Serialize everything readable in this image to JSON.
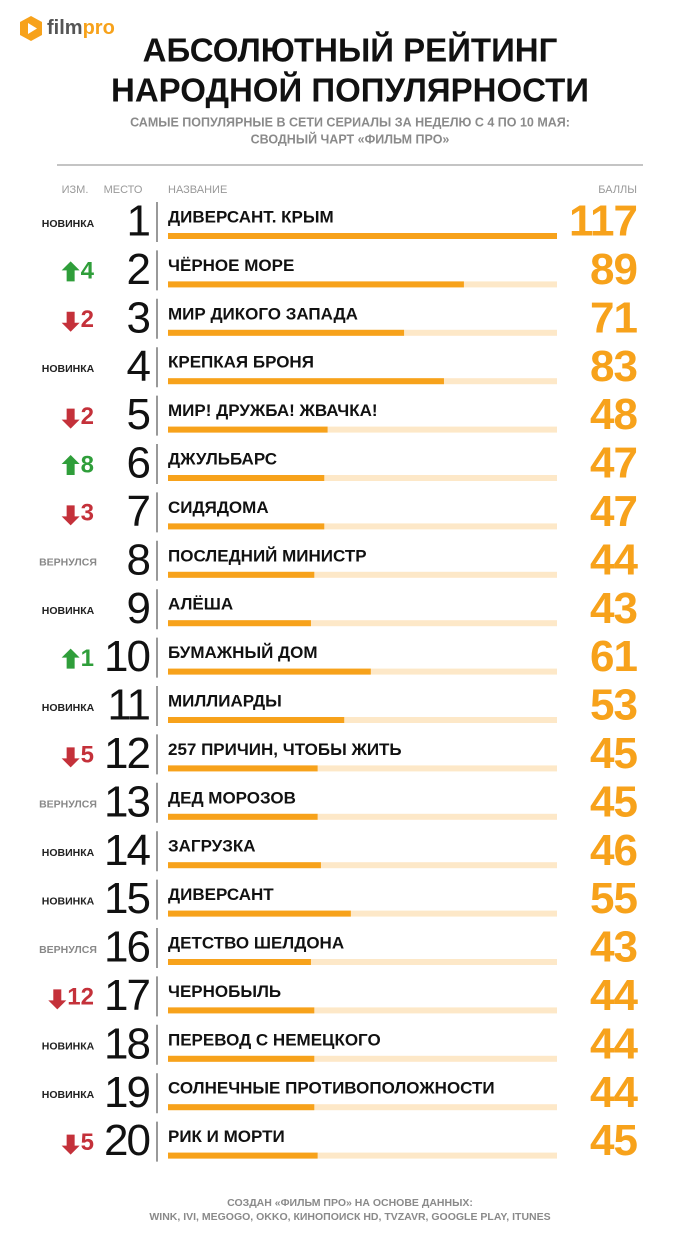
{
  "logo": {
    "film": "film",
    "pro": "pro"
  },
  "title": [
    "АБСОЛЮТНЫЙ РЕЙТИНГ",
    "НАРОДНОЙ ПОПУЛЯРНОСТИ"
  ],
  "subtitle": [
    "САМЫЕ ПОПУЛЯРНЫЕ В СЕТИ СЕРИАЛЫ ЗА НЕДЕЛЮ С 4 ПО 10 МАЯ:",
    "СВОДНЫЙ ЧАРТ «ФИЛЬМ ПРО»"
  ],
  "columns": {
    "change": "ИЗМ.",
    "place": "МЕСТО",
    "name": "НАЗВАНИЕ",
    "score": "БАЛЛЫ"
  },
  "rows": [
    {
      "change": "НОВИНКА",
      "place": 1,
      "name": "ДИВЕРСАНТ. КРЫМ",
      "score": 117
    },
    {
      "change": {
        "direction": "up",
        "value": 4
      },
      "place": 2,
      "name": "ЧЁРНОЕ МОРЕ",
      "score": 89
    },
    {
      "change": {
        "direction": "down",
        "value": 2
      },
      "place": 3,
      "name": "МИР ДИКОГО ЗАПАДА",
      "score": 71
    },
    {
      "change": "НОВИНКА",
      "place": 4,
      "name": "КРЕПКАЯ БРОНЯ",
      "score": 83
    },
    {
      "change": {
        "direction": "down",
        "value": 2
      },
      "place": 5,
      "name": "МИР! ДРУЖБА! ЖВАЧКА!",
      "score": 48
    },
    {
      "change": {
        "direction": "up",
        "value": 8
      },
      "place": 6,
      "name": "ДЖУЛЬБАРС",
      "score": 47
    },
    {
      "change": {
        "direction": "down",
        "value": 3
      },
      "place": 7,
      "name": "СИДЯДОМА",
      "score": 47
    },
    {
      "change": "ВЕРНУЛСЯ",
      "place": 8,
      "name": "ПОСЛЕДНИЙ МИНИСТР",
      "score": 44
    },
    {
      "change": "НОВИНКА",
      "place": 9,
      "name": "АЛЁША",
      "score": 43
    },
    {
      "change": {
        "direction": "up",
        "value": 1
      },
      "place": 10,
      "name": "БУМАЖНЫЙ ДОМ",
      "score": 61
    },
    {
      "change": "НОВИНКА",
      "place": 11,
      "name": "МИЛЛИАРДЫ",
      "score": 53
    },
    {
      "change": {
        "direction": "down",
        "value": 5
      },
      "place": 12,
      "name": "257 ПРИЧИН, ЧТОБЫ ЖИТЬ",
      "score": 45
    },
    {
      "change": "ВЕРНУЛСЯ",
      "place": 13,
      "name": "ДЕД МОРОЗОВ",
      "score": 45
    },
    {
      "change": "НОВИНКА",
      "place": 14,
      "name": "ЗАГРУЗКА",
      "score": 46
    },
    {
      "change": "НОВИНКА",
      "place": 15,
      "name": "ДИВЕРСАНТ",
      "score": 55
    },
    {
      "change": "ВЕРНУЛСЯ",
      "place": 16,
      "name": "ДЕТСТВО ШЕЛДОНА",
      "score": 43
    },
    {
      "change": {
        "direction": "down",
        "value": 12
      },
      "place": 17,
      "name": "ЧЕРНОБЫЛЬ",
      "score": 44
    },
    {
      "change": "НОВИНКА",
      "place": 18,
      "name": "ПЕРЕВОД С НЕМЕЦКОГО",
      "score": 44
    },
    {
      "change": "НОВИНКА",
      "place": 19,
      "name": "СОЛНЕЧНЫЕ ПРОТИВОПОЛОЖНОСТИ",
      "score": 44
    },
    {
      "change": {
        "direction": "down",
        "value": 5
      },
      "place": 20,
      "name": "РИК И МОРТИ",
      "score": 45
    }
  ],
  "footer": [
    "СОЗДАН «ФИЛЬМ ПРО» НА ОСНОВЕ ДАННЫХ:",
    "WINK, IVI, MEGOGO, OKKO, КИНОПОИСК HD, TVZAVR, GOOGLE PLAY, ITUNES"
  ]
}
